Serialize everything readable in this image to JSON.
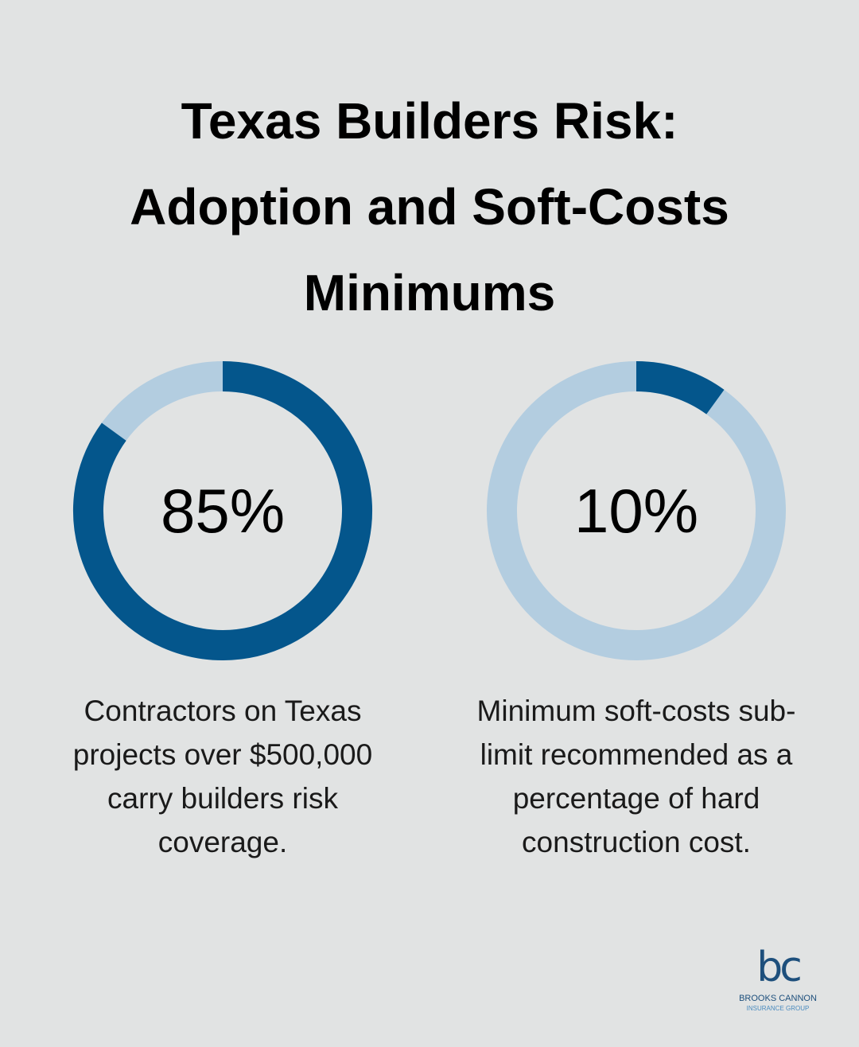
{
  "title": "Texas Builders Risk: Adoption and Soft-Costs Minimums",
  "chart_data": [
    {
      "type": "donut",
      "values": [
        85
      ],
      "value_labels": [
        "85%"
      ],
      "color": "#04568c",
      "track_color": "#b3cde0",
      "caption": "Contractors on Texas projects over $500,000 carry builders risk coverage."
    },
    {
      "type": "donut",
      "values": [
        10
      ],
      "value_labels": [
        "10%"
      ],
      "color": "#04568c",
      "track_color": "#b3cde0",
      "caption": "Minimum soft-costs sub-limit recommended as a percentage of hard construction cost."
    }
  ],
  "logo": {
    "mark": "bc",
    "name": "BROOKS CANNON",
    "tagline": "INSURANCE GROUP"
  }
}
